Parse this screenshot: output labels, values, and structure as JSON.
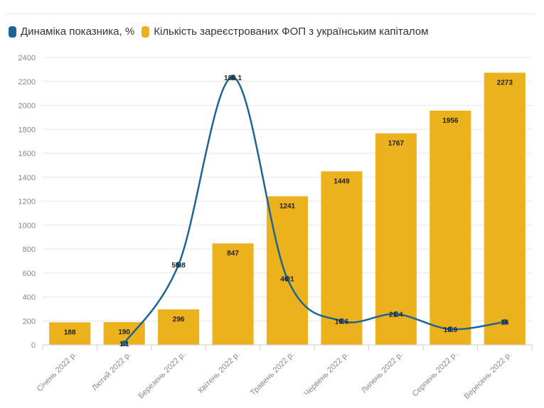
{
  "legend": {
    "line_label": "Динаміка показника, %",
    "bar_label": "Кількість зареєстрованих ФОП з українським капіталом"
  },
  "colors": {
    "bar": "#ecb21d",
    "line": "#1f6591",
    "grid": "#e6e6e6",
    "tick": "#888888"
  },
  "chart_data": {
    "type": "bar",
    "categories": [
      "Січень 2022 р.",
      "Лютий 2022 р.",
      "Березень 2022 р.",
      "Квітень 2022 р.",
      "Травень 2022 р.",
      "Червень 2022 р.",
      "Липень 2022 р.",
      "Серпень 2022 р.",
      "Вересень 2022 р."
    ],
    "yticks": [
      0,
      200,
      400,
      600,
      800,
      1000,
      1200,
      1400,
      1600,
      1800,
      2000,
      2200,
      2400
    ],
    "ylim": [
      0,
      2400
    ],
    "grid": true,
    "legend_position": "top-left",
    "series": [
      {
        "name": "Кількість зареєстрованих ФОП з українським капіталом",
        "type": "bar",
        "values": [
          188,
          190,
          296,
          847,
          1241,
          1449,
          1767,
          1956,
          2273
        ],
        "labels": [
          "188",
          "190",
          "296",
          "847",
          "1241",
          "1449",
          "1767",
          "1956",
          "2273"
        ]
      },
      {
        "name": "Динаміка показника, %",
        "type": "line",
        "values": [
          null,
          1.1,
          55.8,
          186.1,
          46.1,
          16.6,
          21.4,
          10.9,
          16
        ],
        "labels": [
          "",
          "1.1",
          "55.8",
          "186.1",
          "46.1",
          "16.6",
          "21.4",
          "10.9",
          "16"
        ]
      }
    ]
  }
}
